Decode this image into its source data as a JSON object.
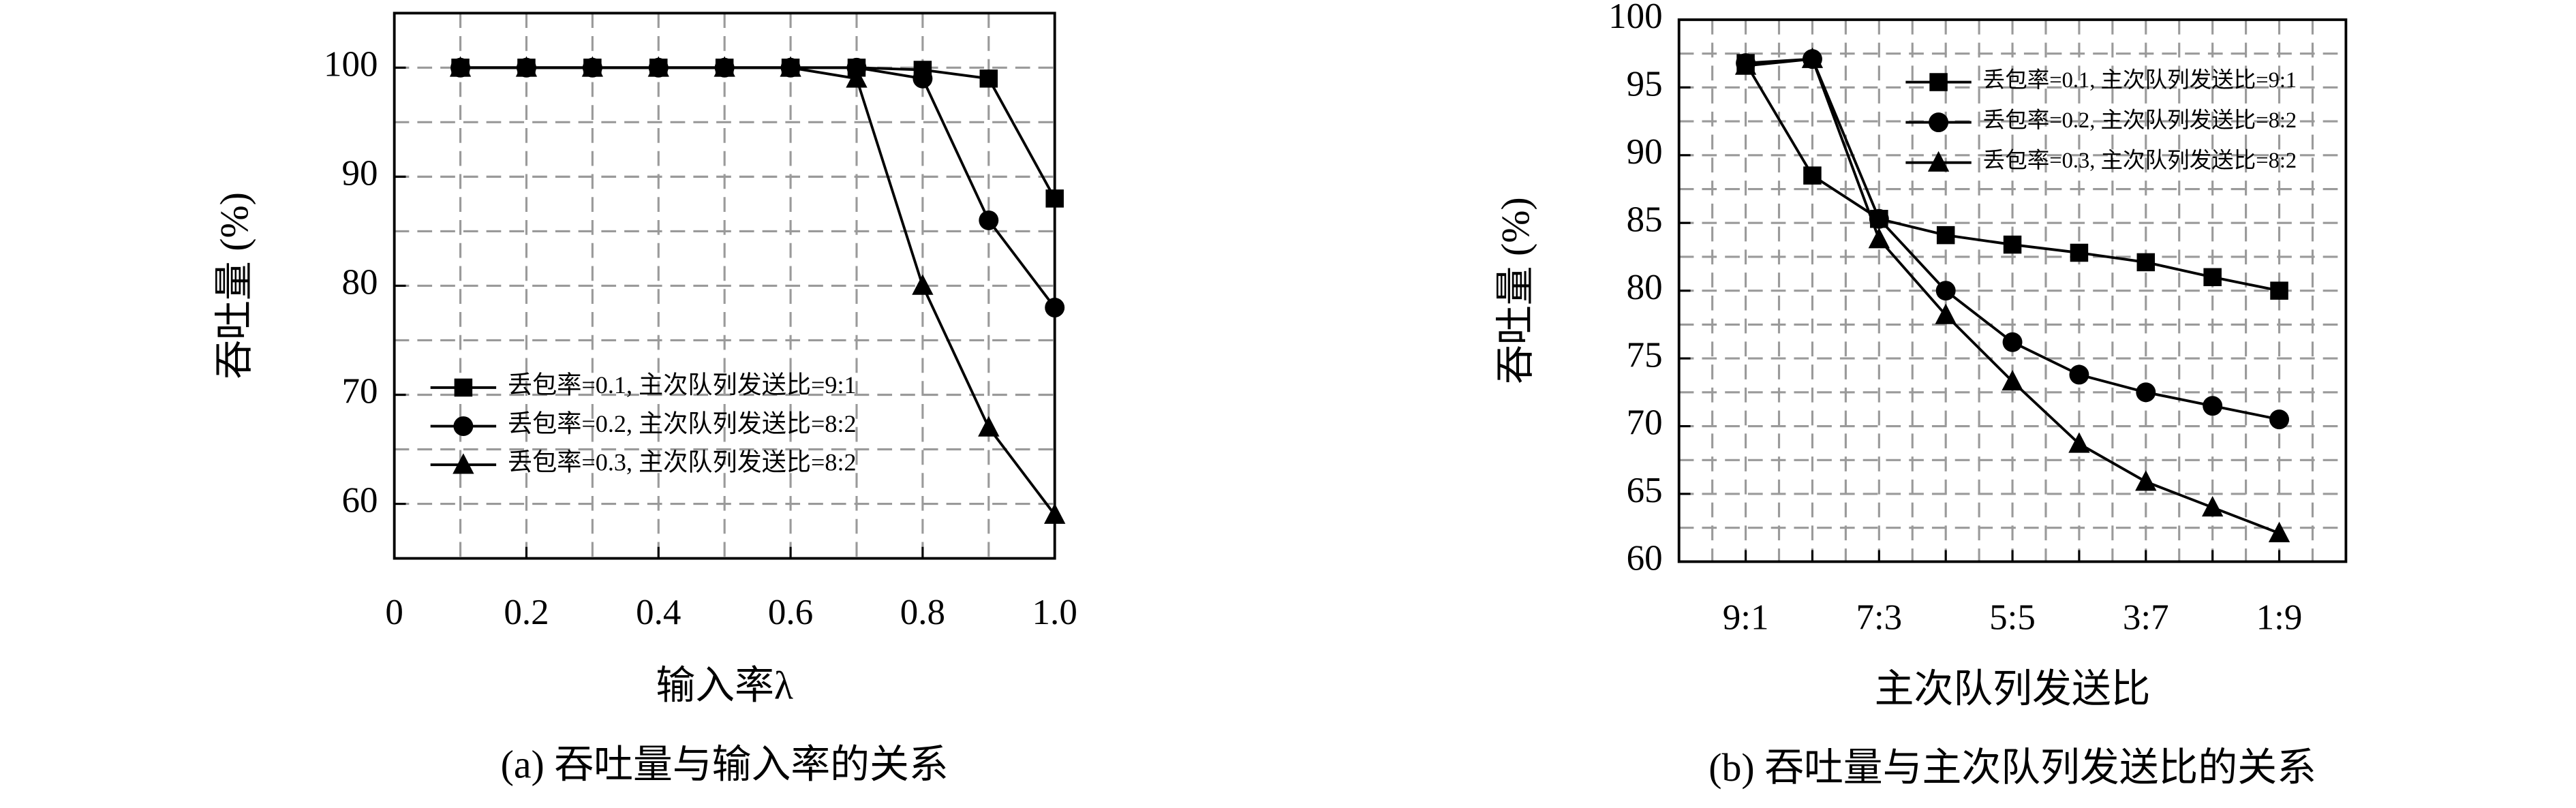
{
  "chart_data": [
    {
      "type": "line",
      "caption": "(a) 吞吐量与输入率的关系",
      "xlabel": "输入率λ",
      "ylabel": "吞吐量 (%)",
      "x": [
        0.1,
        0.2,
        0.3,
        0.4,
        0.5,
        0.6,
        0.7,
        0.8,
        0.9,
        1.0
      ],
      "series": [
        {
          "name": "丢包率=0.1, 主次队列发送比=9:1",
          "color": "#000000",
          "marker": "square",
          "values": [
            100,
            100,
            100,
            100,
            100,
            100,
            100,
            99.8,
            99,
            88
          ]
        },
        {
          "name": "丢包率=0.2, 主次队列发送比=8:2",
          "color": "#000000",
          "marker": "circle",
          "values": [
            100,
            100,
            100,
            100,
            100,
            100,
            100,
            99,
            86,
            78
          ]
        },
        {
          "name": "丢包率=0.3, 主次队列发送比=8:2",
          "color": "#000000",
          "marker": "triangle",
          "values": [
            100,
            100,
            100,
            100,
            100,
            100,
            99,
            80,
            67,
            59
          ]
        }
      ],
      "xlim": [
        0,
        1
      ],
      "xticks": [
        0,
        0.2,
        0.4,
        0.6,
        0.8,
        {
          "value": 1,
          "label": "1.0"
        }
      ],
      "ylim": [
        55,
        105
      ],
      "yticks": [
        60,
        70,
        80,
        90,
        100
      ],
      "minor_xticks": [
        0.1,
        0.3,
        0.5,
        0.7,
        0.9
      ],
      "minor_yticks": [
        65,
        75,
        85,
        95
      ],
      "grid": true,
      "legend": "lower left"
    },
    {
      "type": "line",
      "caption": "(b) 吞吐量与主次队列发送比的关系",
      "xlabel": "主次队列发送比",
      "ylabel": "吞吐量 (%)",
      "categories": [
        "9:1",
        null,
        "7:3",
        null,
        "5:5",
        null,
        "3:7",
        null,
        "1:9"
      ],
      "series": [
        {
          "name": "丢包率=0.1, 主次队列发送比=9:1",
          "color": "#000000",
          "marker": "square",
          "values": [
            96.8,
            88.5,
            85.3,
            84.1,
            83.4,
            82.8,
            82.1,
            81.0,
            80.0
          ]
        },
        {
          "name": "丢包率=0.2, 主次队列发送比=8:2",
          "color": "#000000",
          "marker": "circle",
          "values": [
            96.8,
            97.1,
            85.3,
            80.0,
            76.2,
            73.8,
            72.5,
            71.5,
            70.5
          ]
        },
        {
          "name": "丢包率=0.3, 主次队列发送比=8:2",
          "color": "#000000",
          "marker": "triangle",
          "values": [
            96.6,
            97.1,
            83.8,
            78.2,
            73.3,
            68.7,
            65.9,
            64.0,
            62.1
          ]
        }
      ],
      "ylim": [
        60,
        100
      ],
      "yticks": [
        60,
        65,
        70,
        75,
        80,
        85,
        90,
        95,
        100
      ],
      "minor_yticks": [
        62.5,
        67.5,
        72.5,
        77.5,
        82.5,
        87.5,
        92.5,
        97.5
      ],
      "grid": true,
      "legend": "upper right"
    }
  ]
}
